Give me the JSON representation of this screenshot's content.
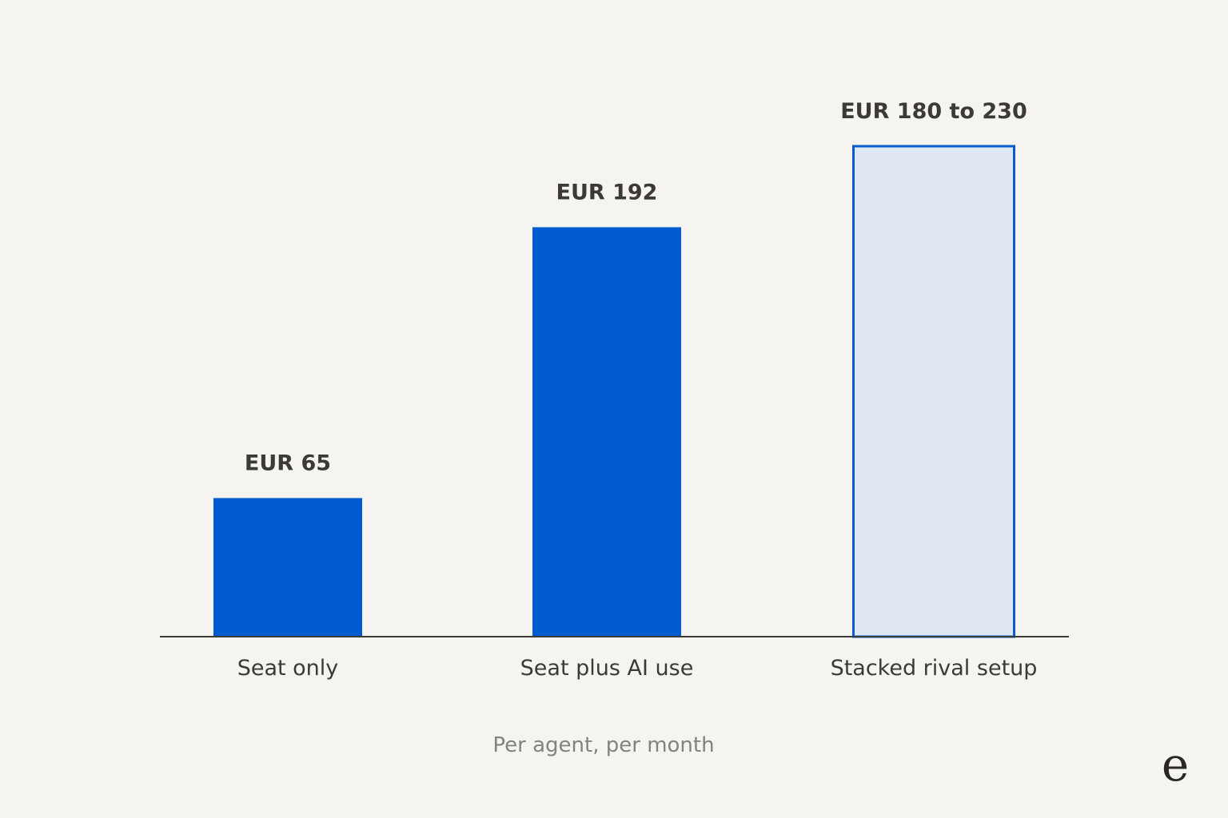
{
  "chart_data": {
    "type": "bar",
    "categories": [
      "Seat only",
      "Seat plus AI use",
      "Stacked rival setup"
    ],
    "series": [
      {
        "values": [
          65,
          192,
          230
        ],
        "ranges": [
          null,
          null,
          [
            180,
            230
          ]
        ],
        "value_labels": [
          "EUR 65",
          "EUR 192",
          "EUR 180 to 230"
        ],
        "styles": [
          "solid",
          "solid",
          "outline"
        ]
      }
    ],
    "title": "",
    "xlabel": "Per agent, per month",
    "ylabel": "",
    "ylim": [
      0,
      256
    ],
    "grid": false,
    "legend": "none",
    "colors": {
      "bar": "#005bcf",
      "outline_fill": "#dfe8f2",
      "outline_stroke": "#0a5bd0",
      "axis": "#3d3a35",
      "background": "#f5f4f1"
    }
  },
  "brand": {
    "logo_letter": "e",
    "logo_icon": "brand-e-logo-icon"
  }
}
